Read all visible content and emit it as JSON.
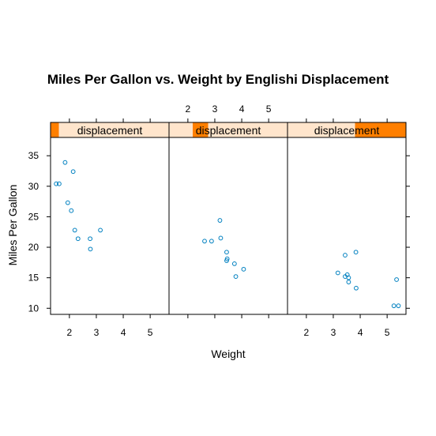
{
  "chart_data": {
    "type": "scatter",
    "title": "Miles Per Gallon vs. Weight by Englishi Displacement",
    "xlabel": "Weight",
    "ylabel": "Miles Per Gallon",
    "xlim": [
      1.3,
      5.7
    ],
    "ylim": [
      9,
      38
    ],
    "xticks": [
      2,
      3,
      4,
      5
    ],
    "yticks": [
      10,
      15,
      20,
      25,
      30,
      35
    ],
    "x_tick_labels": [
      "2",
      "3",
      "4",
      "5"
    ],
    "y_tick_labels": [
      "10",
      "15",
      "20",
      "25",
      "30",
      "35"
    ],
    "grid": false,
    "legend": "none",
    "colors": {
      "point": "#0080c0",
      "strip_bg": "#ffe5cc",
      "strip_fill": "#ff7f00",
      "frame": "#000000"
    },
    "panels": [
      {
        "strip_label": "displacement",
        "strip_range": [
          0.0,
          0.07
        ],
        "points": [
          {
            "x": 1.51,
            "y": 30.4
          },
          {
            "x": 1.62,
            "y": 30.4
          },
          {
            "x": 1.84,
            "y": 33.9
          },
          {
            "x": 1.94,
            "y": 27.3
          },
          {
            "x": 2.07,
            "y": 26.0
          },
          {
            "x": 2.14,
            "y": 32.4
          },
          {
            "x": 2.2,
            "y": 22.8
          },
          {
            "x": 2.32,
            "y": 21.4
          },
          {
            "x": 2.77,
            "y": 21.4
          },
          {
            "x": 2.78,
            "y": 19.7
          },
          {
            "x": 3.15,
            "y": 22.8
          }
        ]
      },
      {
        "strip_label": "displacement",
        "strip_range": [
          0.2,
          0.33
        ],
        "points": [
          {
            "x": 2.62,
            "y": 21.0
          },
          {
            "x": 2.88,
            "y": 21.0
          },
          {
            "x": 3.19,
            "y": 24.4
          },
          {
            "x": 3.22,
            "y": 21.5
          },
          {
            "x": 3.44,
            "y": 19.2
          },
          {
            "x": 3.44,
            "y": 17.8
          },
          {
            "x": 3.46,
            "y": 18.1
          },
          {
            "x": 3.73,
            "y": 17.3
          },
          {
            "x": 3.78,
            "y": 15.2
          },
          {
            "x": 4.07,
            "y": 16.4
          }
        ]
      },
      {
        "strip_label": "displacement",
        "strip_range": [
          0.57,
          1.0
        ],
        "points": [
          {
            "x": 3.17,
            "y": 15.8
          },
          {
            "x": 3.44,
            "y": 18.7
          },
          {
            "x": 3.44,
            "y": 15.2
          },
          {
            "x": 3.52,
            "y": 15.5
          },
          {
            "x": 3.57,
            "y": 14.3
          },
          {
            "x": 3.57,
            "y": 15.0
          },
          {
            "x": 3.84,
            "y": 19.2
          },
          {
            "x": 3.85,
            "y": 13.3
          },
          {
            "x": 5.25,
            "y": 10.4
          },
          {
            "x": 5.42,
            "y": 10.4
          },
          {
            "x": 5.35,
            "y": 14.7
          }
        ]
      }
    ]
  }
}
